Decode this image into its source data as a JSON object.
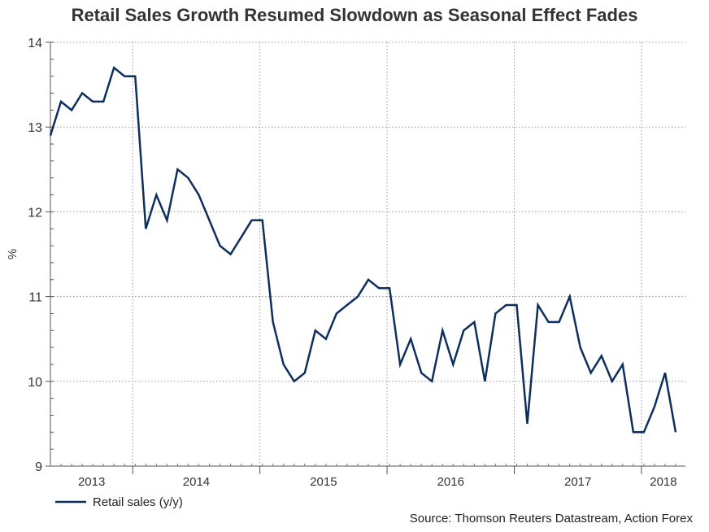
{
  "chart_data": {
    "type": "line",
    "title": "Retail Sales Growth Resumed Slowdown as Seasonal Effect Fades",
    "ylabel": "%",
    "xlabel": "",
    "ylim": [
      9,
      14
    ],
    "yticks": [
      "9",
      "10",
      "11",
      "12",
      "13",
      "14"
    ],
    "xtick_labels": [
      "2013",
      "2014",
      "2015",
      "2016",
      "2017",
      "2018"
    ],
    "grid": true,
    "legend_position": "bottom-left",
    "series": [
      {
        "name": "Retail sales (y/y)",
        "color": "#0d2f5e",
        "x": [
          "2013-05",
          "2013-06",
          "2013-07",
          "2013-08",
          "2013-09",
          "2013-10",
          "2013-11",
          "2013-12",
          "2014-01",
          "2014-02",
          "2014-03",
          "2014-04",
          "2014-05",
          "2014-06",
          "2014-07",
          "2014-08",
          "2014-09",
          "2014-10",
          "2014-11",
          "2014-12",
          "2015-01",
          "2015-02",
          "2015-03",
          "2015-04",
          "2015-05",
          "2015-06",
          "2015-07",
          "2015-08",
          "2015-09",
          "2015-10",
          "2015-11",
          "2015-12",
          "2016-01",
          "2016-02",
          "2016-03",
          "2016-04",
          "2016-05",
          "2016-06",
          "2016-07",
          "2016-08",
          "2016-09",
          "2016-10",
          "2016-11",
          "2016-12",
          "2017-01",
          "2017-02",
          "2017-03",
          "2017-04",
          "2017-05",
          "2017-06",
          "2017-07",
          "2017-08",
          "2017-09",
          "2017-10",
          "2017-11",
          "2017-12",
          "2018-01",
          "2018-02",
          "2018-03",
          "2018-04"
        ],
        "values": [
          12.9,
          13.3,
          13.2,
          13.4,
          13.3,
          13.3,
          13.7,
          13.6,
          13.6,
          11.8,
          12.2,
          11.9,
          12.5,
          12.4,
          12.2,
          11.9,
          11.6,
          11.5,
          11.7,
          11.9,
          11.9,
          10.7,
          10.2,
          10.0,
          10.1,
          10.6,
          10.5,
          10.8,
          10.9,
          11.0,
          11.2,
          11.1,
          11.1,
          10.2,
          10.5,
          10.1,
          10.0,
          10.6,
          10.2,
          10.6,
          10.7,
          10.0,
          10.8,
          10.9,
          10.9,
          9.5,
          10.9,
          10.7,
          10.7,
          11.0,
          10.4,
          10.1,
          10.3,
          10.0,
          10.2,
          9.4,
          9.4,
          9.7,
          10.1,
          9.4
        ]
      }
    ],
    "source": "Source: Thomson Reuters Datastream, Action Forex"
  }
}
